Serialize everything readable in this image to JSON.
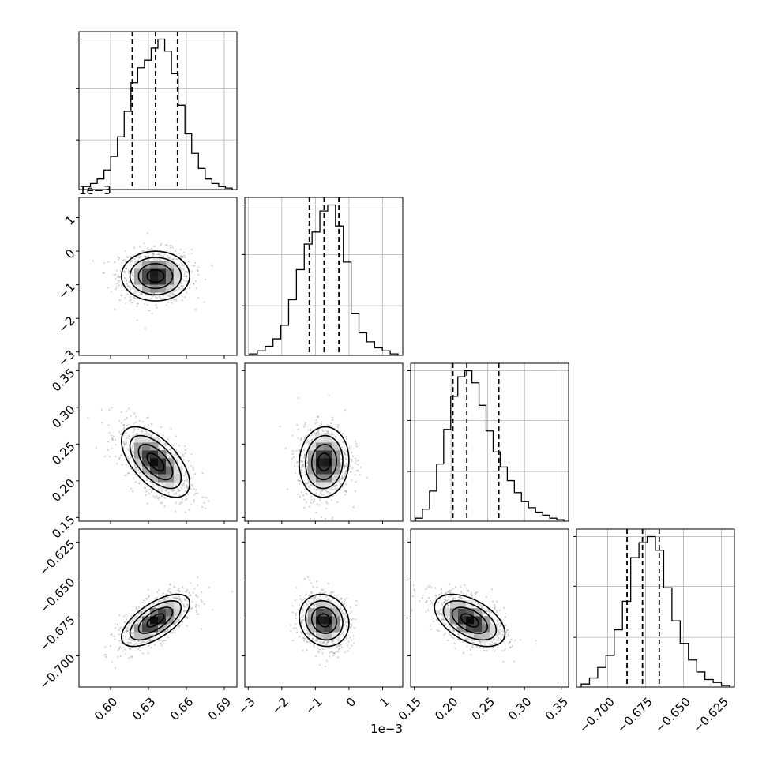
{
  "chart_data": {
    "type": "corner",
    "title": "",
    "grid": true,
    "parameters": [
      {
        "id": "p0",
        "label": "",
        "range": [
          0.575,
          0.7
        ],
        "ticks": [
          0.6,
          0.63,
          0.66,
          0.69
        ],
        "tick_labels": [
          "0.60",
          "0.63",
          "0.66",
          "0.69"
        ],
        "offset_label": ""
      },
      {
        "id": "p1",
        "label": "",
        "range": [
          -3.1,
          1.6
        ],
        "ticks": [
          -3,
          -2,
          -1,
          0,
          1
        ],
        "tick_labels": [
          "−3",
          "−2",
          "−1",
          "0",
          "1"
        ],
        "offset_label": "1e−3"
      },
      {
        "id": "p2",
        "label": "",
        "range": [
          0.145,
          0.36
        ],
        "ticks": [
          0.15,
          0.2,
          0.25,
          0.3,
          0.35
        ],
        "tick_labels": [
          "0.15",
          "0.20",
          "0.25",
          "0.30",
          "0.35"
        ],
        "offset_label": ""
      },
      {
        "id": "p3",
        "label": "",
        "range": [
          -0.7205,
          -0.6165
        ],
        "ticks": [
          -0.7,
          -0.675,
          -0.65,
          -0.625
        ],
        "tick_labels": [
          "−0.700",
          "−0.675",
          "−0.650",
          "−0.625"
        ],
        "offset_label": ""
      }
    ],
    "marginals": [
      {
        "param": "p0",
        "quantiles": [
          0.6172,
          0.6356,
          0.653
        ],
        "hist_y": [
          0.02,
          0.04,
          0.07,
          0.13,
          0.22,
          0.35,
          0.52,
          0.71,
          0.81,
          0.86,
          0.94,
          1.0,
          0.92,
          0.77,
          0.56,
          0.37,
          0.24,
          0.14,
          0.07,
          0.04,
          0.02,
          0.01
        ]
      },
      {
        "param": "p1",
        "quantiles": [
          -1.18,
          -0.74,
          -0.3
        ],
        "hist_y": [
          0.01,
          0.03,
          0.06,
          0.11,
          0.2,
          0.37,
          0.57,
          0.74,
          0.82,
          0.96,
          1.0,
          0.86,
          0.62,
          0.28,
          0.15,
          0.09,
          0.05,
          0.03,
          0.01
        ]
      },
      {
        "param": "p2",
        "quantiles": [
          0.2025,
          0.2215,
          0.265
        ],
        "hist_y": [
          0.02,
          0.08,
          0.2,
          0.38,
          0.61,
          0.83,
          0.96,
          1.0,
          0.92,
          0.77,
          0.6,
          0.46,
          0.36,
          0.27,
          0.19,
          0.13,
          0.09,
          0.06,
          0.04,
          0.02,
          0.01
        ]
      },
      {
        "param": "p3",
        "quantiles": [
          -0.6872,
          -0.677,
          -0.666
        ],
        "hist_y": [
          0.02,
          0.06,
          0.13,
          0.21,
          0.38,
          0.57,
          0.86,
          0.96,
          1.0,
          0.91,
          0.66,
          0.44,
          0.29,
          0.18,
          0.1,
          0.05,
          0.03,
          0.01
        ]
      }
    ],
    "joint": [
      {
        "x": "p0",
        "y": "p1",
        "mean": [
          0.6356,
          -0.74
        ],
        "sd": [
          0.0135,
          0.37
        ],
        "corr": 0.0
      },
      {
        "x": "p0",
        "y": "p2",
        "mean": [
          0.6356,
          0.2255
        ],
        "sd": [
          0.0135,
          0.024
        ],
        "corr": -0.6
      },
      {
        "x": "p1",
        "y": "p2",
        "mean": [
          -0.74,
          0.2255
        ],
        "sd": [
          0.37,
          0.024
        ],
        "corr": 0.05
      },
      {
        "x": "p0",
        "y": "p3",
        "mean": [
          0.6356,
          -0.6766
        ],
        "sd": [
          0.0135,
          0.0086
        ],
        "corr": 0.65
      },
      {
        "x": "p1",
        "y": "p3",
        "mean": [
          -0.74,
          -0.6766
        ],
        "sd": [
          0.37,
          0.0086
        ],
        "corr": -0.12
      },
      {
        "x": "p2",
        "y": "p3",
        "mean": [
          0.2255,
          -0.6766
        ],
        "sd": [
          0.024,
          0.0086
        ],
        "corr": -0.5
      }
    ],
    "contour_levels_sigma": [
      0.5,
      1.0,
      1.5,
      2.0
    ]
  }
}
